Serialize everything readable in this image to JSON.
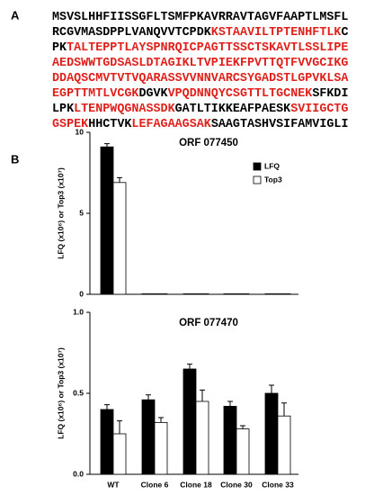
{
  "panel_labels": [
    "A",
    "B"
  ],
  "sequence": [
    [
      {
        "text": "MSVSLHHFIISSGFLTSMFPKAVRRAVTAGVFAAPTLMSFL",
        "color": "#000000"
      }
    ],
    [
      {
        "text": "RCGVMASDPPLVANQVVTCPDK",
        "color": "#000000"
      },
      {
        "text": "KSTAAVILTPTENHFTLK",
        "color": "#e0201b"
      },
      {
        "text": "C",
        "color": "#000000"
      }
    ],
    [
      {
        "text": "PK",
        "color": "#000000"
      },
      {
        "text": "TALTEPPTLAYSPNRQICPAGTTSSCTSKAVTLSSLIPE",
        "color": "#e0201b"
      }
    ],
    [
      {
        "text": "AEDSWWTGDSASLDTAGIKLTVPIEKFPVTTQTFVVGCIKG",
        "color": "#e0201b"
      }
    ],
    [
      {
        "text": "DDAQSCMVTVTVQARASSVVNNVARCSYGADSTLGPVKLSA",
        "color": "#e0201b"
      }
    ],
    [
      {
        "text": "EGPTTMTLVCGK",
        "color": "#e0201b"
      },
      {
        "text": "DGVK",
        "color": "#000000"
      },
      {
        "text": "VPQDNNQYCSGTTLTGCNEK",
        "color": "#e0201b"
      },
      {
        "text": "SFKDI",
        "color": "#000000"
      }
    ],
    [
      {
        "text": "LPK",
        "color": "#000000"
      },
      {
        "text": "LTENPWQGNASSDK",
        "color": "#e0201b"
      },
      {
        "text": "GATLTIKKEAFPAESK",
        "color": "#000000"
      },
      {
        "text": "SVIIGCTG",
        "color": "#e0201b"
      }
    ],
    [
      {
        "text": "GSPEK",
        "color": "#e0201b"
      },
      {
        "text": "HHCTVK",
        "color": "#000000"
      },
      {
        "text": "LEFAGAAGSAK",
        "color": "#e0201b"
      },
      {
        "text": "SAAGTASHVSIFAMVIGLI",
        "color": "#000000"
      }
    ]
  ],
  "chart_data": [
    {
      "type": "bar",
      "title": "ORF 077450",
      "y_label": "LFQ (x10⁶) or Top3 (x10⁷)",
      "categories": [
        null,
        null,
        null,
        null,
        null
      ],
      "series": [
        {
          "name": "LFQ",
          "color": "#000000",
          "values": [
            9.1,
            0.03,
            0.03,
            0.03,
            0.03
          ],
          "errors": [
            0.2,
            0,
            0,
            0,
            0
          ]
        },
        {
          "name": "Top3",
          "color": "#ffffff",
          "values": [
            6.9,
            0.03,
            0.03,
            0.03,
            0.03
          ],
          "errors": [
            0.3,
            0,
            0,
            0,
            0
          ]
        }
      ],
      "ylim": [
        0,
        10
      ],
      "yticks": [
        0,
        5,
        10
      ],
      "grid": false,
      "legend": "upper right"
    },
    {
      "type": "bar",
      "title": "ORF 077470",
      "y_label": "LFQ (x10⁶) or Top3 (x10⁷)",
      "categories": [
        "WT",
        "Clone 6",
        "Clone 18",
        "Clone 30",
        "Clone 33"
      ],
      "series": [
        {
          "name": "LFQ",
          "color": "#000000",
          "values": [
            0.4,
            0.46,
            0.65,
            0.42,
            0.5
          ],
          "errors": [
            0.03,
            0.03,
            0.03,
            0.03,
            0.05
          ]
        },
        {
          "name": "Top3",
          "color": "#ffffff",
          "values": [
            0.25,
            0.32,
            0.45,
            0.28,
            0.36
          ],
          "errors": [
            0.08,
            0.03,
            0.07,
            0.02,
            0.08
          ]
        }
      ],
      "ylim": [
        0,
        1
      ],
      "yticks": [
        {
          "value": 0,
          "label": "0.0"
        },
        {
          "value": 0.5,
          "label": "0.5"
        },
        {
          "value": 1,
          "label": "1.0"
        }
      ],
      "grid": false
    }
  ]
}
